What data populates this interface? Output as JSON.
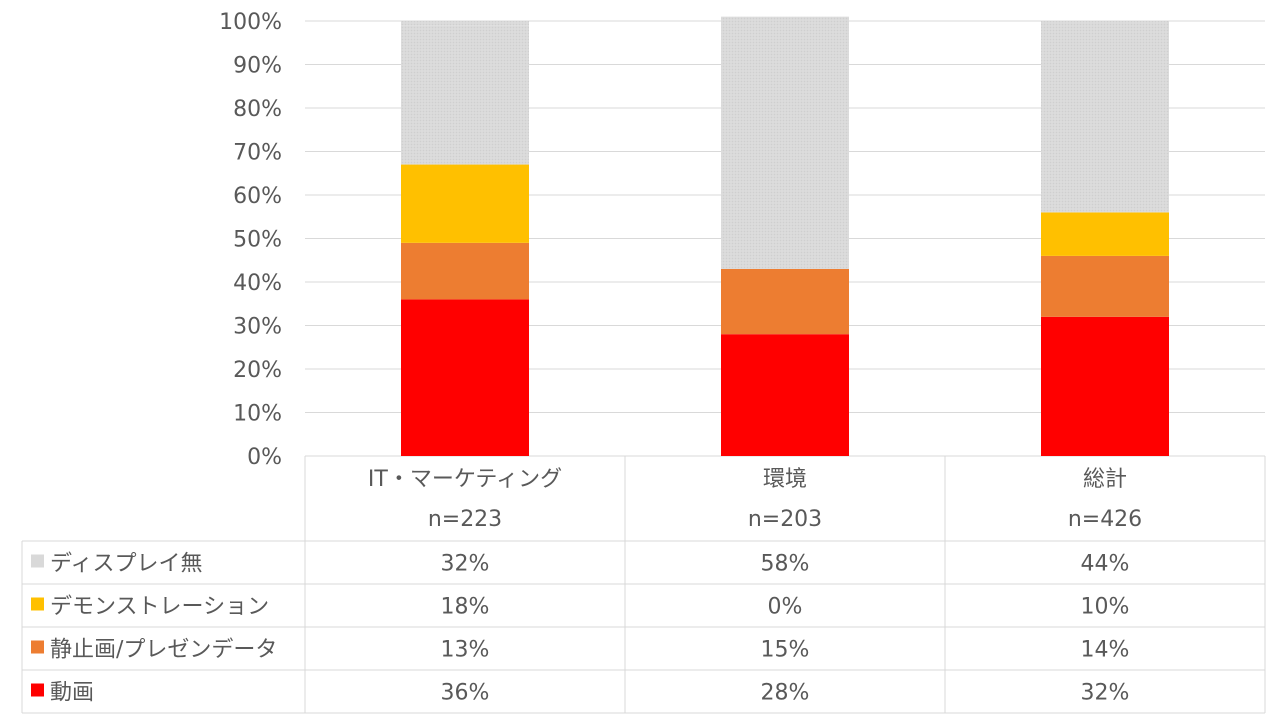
{
  "chart_data": {
    "type": "bar",
    "stacked": true,
    "normalized": true,
    "categories": [
      "IT・マーケティング",
      "環境",
      "総計"
    ],
    "sample_sizes": [
      "n=223",
      "n=203",
      "n=426"
    ],
    "y_ticks": [
      "0%",
      "10%",
      "20%",
      "30%",
      "40%",
      "50%",
      "60%",
      "70%",
      "80%",
      "90%",
      "100%"
    ],
    "ylim": [
      0,
      100
    ],
    "grid": true,
    "legend_placement": "data-table-left",
    "series": [
      {
        "name": "動画",
        "color": "#FF0000",
        "values": [
          36,
          28,
          32
        ],
        "labels": [
          "36%",
          "28%",
          "32%"
        ]
      },
      {
        "name": "静止画/プレゼンデータ",
        "color": "#ED7D31",
        "values": [
          13,
          15,
          14
        ],
        "labels": [
          "13%",
          "15%",
          "14%"
        ]
      },
      {
        "name": "デモンストレーション",
        "color": "#FFC000",
        "values": [
          18,
          0,
          10
        ],
        "labels": [
          "18%",
          "0%",
          "10%"
        ]
      },
      {
        "name": "ディスプレイ無",
        "color": "#D9D9D9",
        "values": [
          32,
          58,
          44
        ],
        "labels": [
          "32%",
          "58%",
          "44%"
        ]
      }
    ],
    "table_row_order": [
      3,
      2,
      1,
      0
    ]
  }
}
